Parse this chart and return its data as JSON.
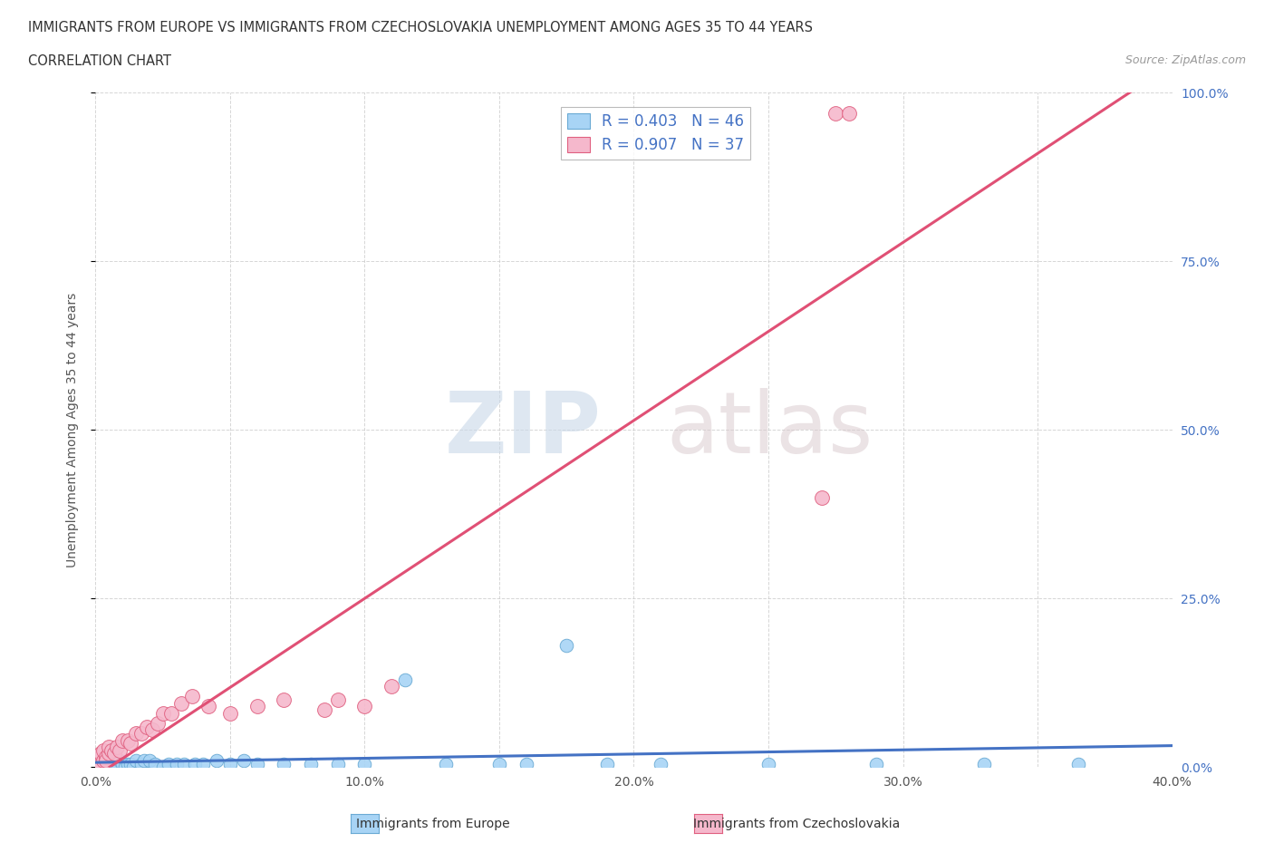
{
  "title_line1": "IMMIGRANTS FROM EUROPE VS IMMIGRANTS FROM CZECHOSLOVAKIA UNEMPLOYMENT AMONG AGES 35 TO 44 YEARS",
  "title_line2": "CORRELATION CHART",
  "source": "Source: ZipAtlas.com",
  "ylabel": "Unemployment Among Ages 35 to 44 years",
  "xlim": [
    0.0,
    0.4
  ],
  "ylim": [
    0.0,
    1.0
  ],
  "xticks": [
    0.0,
    0.05,
    0.1,
    0.15,
    0.2,
    0.25,
    0.3,
    0.35,
    0.4
  ],
  "xtick_labels": [
    "0.0%",
    "",
    "10.0%",
    "",
    "20.0%",
    "",
    "30.0%",
    "",
    "40.0%"
  ],
  "yticks": [
    0.0,
    0.25,
    0.5,
    0.75,
    1.0
  ],
  "ytick_labels_right": [
    "0.0%",
    "25.0%",
    "50.0%",
    "75.0%",
    "100.0%"
  ],
  "europe_color": "#a8d4f5",
  "europe_edge": "#6aaad4",
  "czecho_color": "#f5b8cc",
  "czecho_edge": "#e06080",
  "europe_R": 0.403,
  "europe_N": 46,
  "czecho_R": 0.907,
  "czecho_N": 37,
  "europe_line_color": "#4472c4",
  "czecho_line_color": "#e05075",
  "watermark_zip": "ZIP",
  "watermark_atlas": "atlas",
  "background_color": "#ffffff",
  "grid_color": "#cccccc",
  "europe_x": [
    0.001,
    0.002,
    0.003,
    0.003,
    0.004,
    0.005,
    0.005,
    0.006,
    0.007,
    0.008,
    0.009,
    0.01,
    0.011,
    0.012,
    0.013,
    0.014,
    0.015,
    0.017,
    0.018,
    0.02,
    0.022,
    0.025,
    0.027,
    0.03,
    0.033,
    0.037,
    0.04,
    0.045,
    0.05,
    0.055,
    0.06,
    0.07,
    0.08,
    0.09,
    0.1,
    0.115,
    0.13,
    0.15,
    0.16,
    0.175,
    0.19,
    0.21,
    0.25,
    0.29,
    0.33,
    0.365
  ],
  "europe_y": [
    0.005,
    0.0,
    0.005,
    0.0,
    0.005,
    0.005,
    0.0,
    0.0,
    0.005,
    0.005,
    0.01,
    0.005,
    0.0,
    0.005,
    0.005,
    0.0,
    0.01,
    0.005,
    0.01,
    0.01,
    0.005,
    0.0,
    0.005,
    0.005,
    0.005,
    0.005,
    0.005,
    0.01,
    0.005,
    0.01,
    0.005,
    0.005,
    0.005,
    0.005,
    0.005,
    0.13,
    0.005,
    0.005,
    0.005,
    0.18,
    0.005,
    0.005,
    0.005,
    0.005,
    0.005,
    0.005
  ],
  "czecho_x": [
    0.001,
    0.001,
    0.002,
    0.002,
    0.003,
    0.003,
    0.004,
    0.004,
    0.005,
    0.005,
    0.006,
    0.007,
    0.008,
    0.009,
    0.01,
    0.012,
    0.013,
    0.015,
    0.017,
    0.019,
    0.021,
    0.023,
    0.025,
    0.028,
    0.032,
    0.036,
    0.042,
    0.05,
    0.06,
    0.07,
    0.085,
    0.09,
    0.1,
    0.11,
    0.27,
    0.275,
    0.28
  ],
  "czecho_y": [
    0.0,
    0.005,
    0.005,
    0.02,
    0.01,
    0.025,
    0.015,
    0.01,
    0.02,
    0.03,
    0.025,
    0.02,
    0.03,
    0.025,
    0.04,
    0.04,
    0.035,
    0.05,
    0.05,
    0.06,
    0.055,
    0.065,
    0.08,
    0.08,
    0.095,
    0.105,
    0.09,
    0.08,
    0.09,
    0.1,
    0.085,
    0.1,
    0.09,
    0.12,
    0.4,
    0.97,
    0.97
  ]
}
